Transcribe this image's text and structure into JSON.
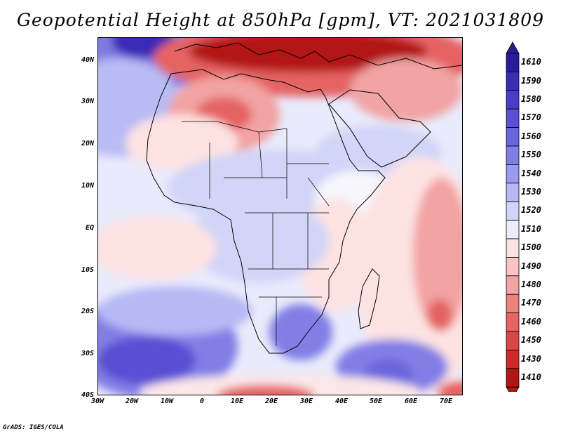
{
  "title": "Geopotential Height at 850hPa [gpm], VT: 2021031809",
  "credit": "GrADS: IGES/COLA",
  "lat_ticks": [
    "40N",
    "30N",
    "20N",
    "10N",
    "EQ",
    "10S",
    "20S",
    "30S",
    "40S"
  ],
  "lon_ticks": [
    "30W",
    "20W",
    "10W",
    "0",
    "10E",
    "20E",
    "30E",
    "40E",
    "50E",
    "60E",
    "70E"
  ],
  "colorbar": {
    "levels": [
      "1610",
      "1590",
      "1580",
      "1570",
      "1560",
      "1550",
      "1540",
      "1530",
      "1520",
      "1510",
      "1500",
      "1490",
      "1480",
      "1470",
      "1460",
      "1450",
      "1430",
      "1410"
    ],
    "colors": [
      "#2a1a9e",
      "#3b2cb5",
      "#4a3ec8",
      "#5a50d4",
      "#6c66de",
      "#817fe6",
      "#9a9aef",
      "#b6b9f4",
      "#d2d5f8",
      "#ecedfb",
      "#fde2e2",
      "#f8c4c4",
      "#f2a3a3",
      "#ec8383",
      "#e56464",
      "#dc4545",
      "#cc2a2a",
      "#b31414"
    ]
  }
}
